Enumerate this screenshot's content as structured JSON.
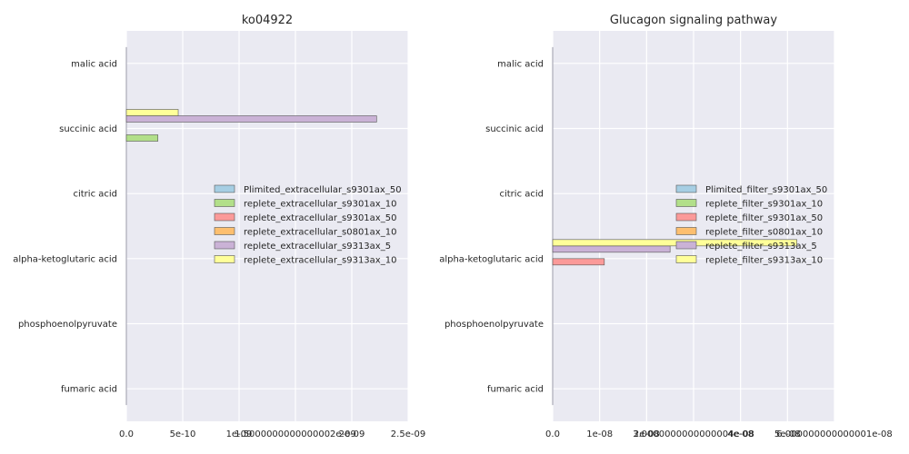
{
  "chart_data": [
    {
      "type": "bar",
      "orientation": "horizontal",
      "title": "ko04922",
      "categories": [
        "malic acid",
        "succinic acid",
        "citric acid",
        "alpha-ketoglutaric acid",
        "phosphoenolpyruvate",
        "fumaric acid"
      ],
      "xlim": [
        0,
        2.5e-09
      ],
      "x_tick_labels": [
        "0.0",
        "5e-10",
        "1e-09",
        "1.5000000000000002e-09",
        "2e-09",
        "2.5e-09"
      ],
      "grid": true,
      "legend_position": "center right",
      "series": [
        {
          "name": "Plimited_extracellular_s9301ax_50",
          "color": "#a6cee3",
          "values": [
            0,
            0,
            0,
            0,
            0,
            0
          ]
        },
        {
          "name": "replete_extracellular_s9301ax_10",
          "color": "#b2df8a",
          "values": [
            0,
            2.8e-10,
            0,
            0,
            0,
            0
          ]
        },
        {
          "name": "replete_extracellular_s9301ax_50",
          "color": "#fb9a99",
          "values": [
            0,
            0,
            0,
            0,
            0,
            0
          ]
        },
        {
          "name": "replete_extracellular_s0801ax_10",
          "color": "#fdbf6f",
          "values": [
            0,
            0,
            0,
            0,
            0,
            0
          ]
        },
        {
          "name": "replete_extracellular_s9313ax_5",
          "color": "#cab2d6",
          "values": [
            0,
            2.22e-09,
            0,
            0,
            0,
            0
          ]
        },
        {
          "name": "replete_extracellular_s9313ax_10",
          "color": "#ffff99",
          "values": [
            0,
            4.6e-10,
            0,
            0,
            0,
            0
          ]
        }
      ]
    },
    {
      "type": "bar",
      "orientation": "horizontal",
      "title": "Glucagon signaling pathway",
      "categories": [
        "malic acid",
        "succinic acid",
        "citric acid",
        "alpha-ketoglutaric acid",
        "phosphoenolpyruvate",
        "fumaric acid"
      ],
      "xlim": [
        0,
        6e-08
      ],
      "x_tick_labels": [
        "0.0",
        "1e-08",
        "2e-08",
        "3.0000000000000004e-08",
        "4e-08",
        "5e-08",
        "6.000000000000001e-08"
      ],
      "grid": true,
      "legend_position": "center right",
      "series": [
        {
          "name": "Plimited_filter_s9301ax_50",
          "color": "#a6cee3",
          "values": [
            0,
            0,
            0,
            0,
            0,
            0
          ]
        },
        {
          "name": "replete_filter_s9301ax_10",
          "color": "#b2df8a",
          "values": [
            0,
            0,
            0,
            0,
            0,
            0
          ]
        },
        {
          "name": "replete_filter_s9301ax_50",
          "color": "#fb9a99",
          "values": [
            0,
            0,
            0,
            1.1e-08,
            0,
            0
          ]
        },
        {
          "name": "replete_filter_s0801ax_10",
          "color": "#fdbf6f",
          "values": [
            0,
            0,
            0,
            0,
            0,
            0
          ]
        },
        {
          "name": "replete_filter_s9313ax_5",
          "color": "#cab2d6",
          "values": [
            0,
            0,
            0,
            2.5e-08,
            0,
            0
          ]
        },
        {
          "name": "replete_filter_s9313ax_10",
          "color": "#ffff99",
          "values": [
            0,
            0,
            0,
            5.2e-08,
            0,
            0
          ]
        }
      ]
    }
  ]
}
